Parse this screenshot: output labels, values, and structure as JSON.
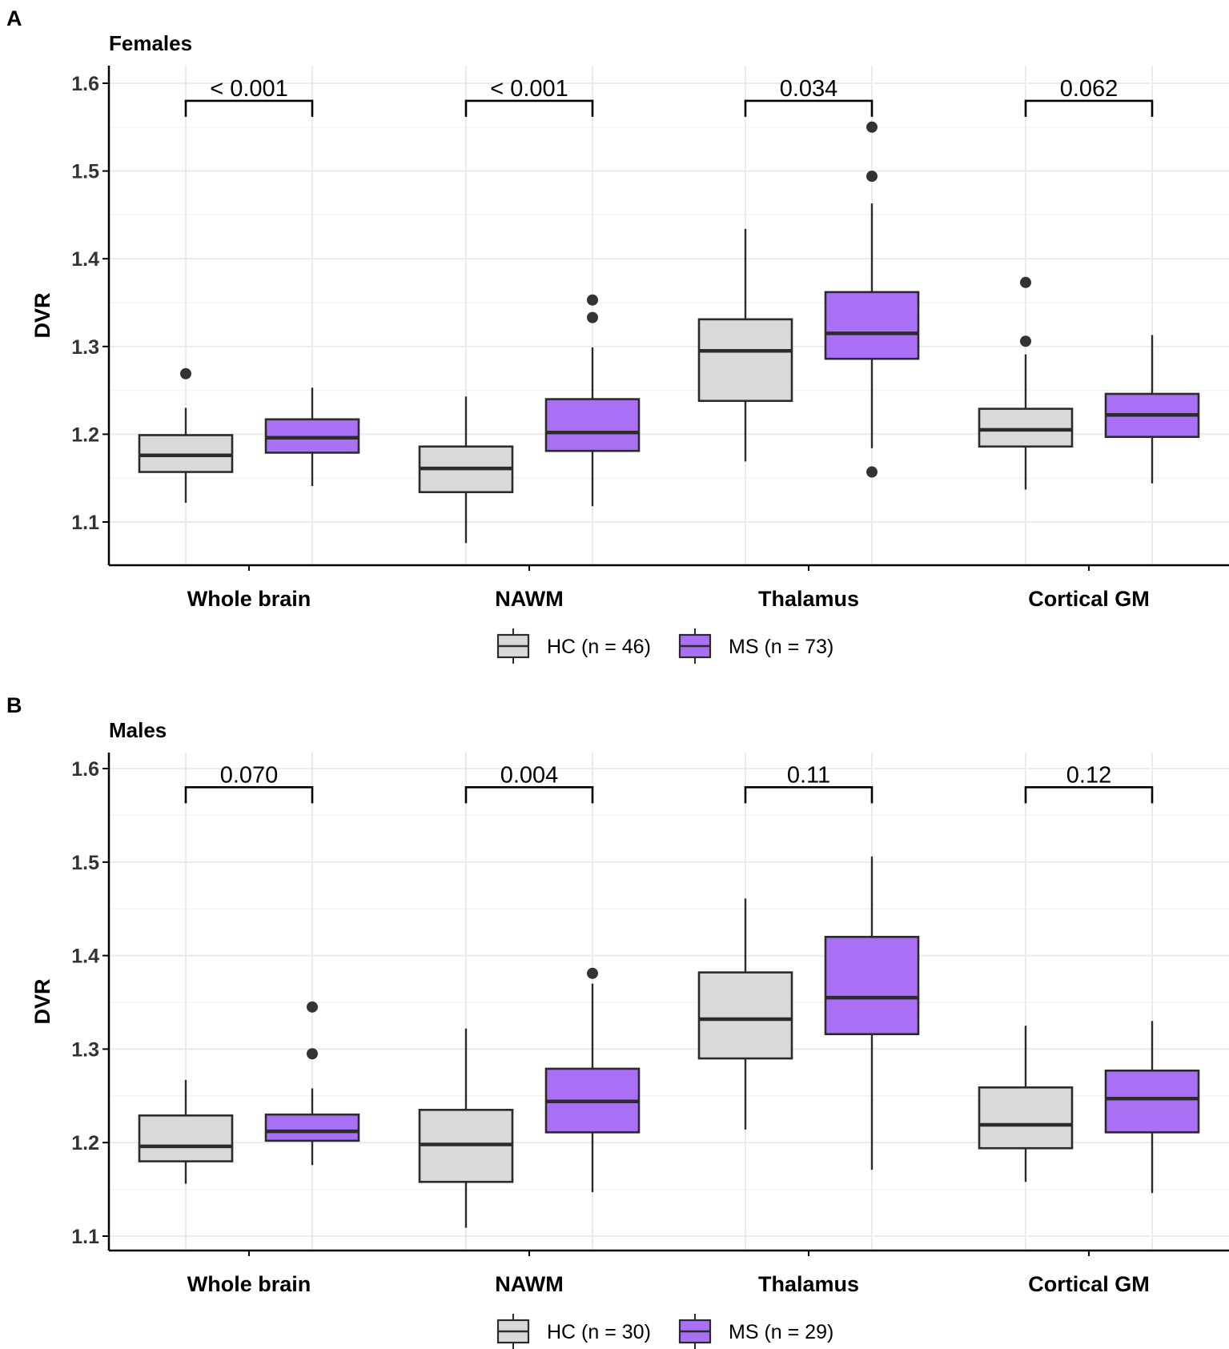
{
  "figure": {
    "description_free": true
  },
  "chart_data": [
    {
      "type": "boxplot",
      "panel_label": "A",
      "title": "Females",
      "xlabel": "",
      "ylabel": "DVR",
      "ylim": [
        1.05,
        1.62
      ],
      "yticks": [
        "1.1",
        "1.2",
        "1.3",
        "1.4",
        "1.5",
        "1.6"
      ],
      "categories": [
        "Whole brain",
        "NAWM",
        "Thalamus",
        "Cortical GM"
      ],
      "legend": {
        "placement": "bottom",
        "entries": [
          "HC (n = 46)",
          "MS (n = 73)"
        ]
      },
      "colors": {
        "HC": "#d9d9d9",
        "MS": "#a970f5",
        "stroke": "#2b2b2b"
      },
      "p_values": [
        "< 0.001",
        "< 0.001",
        "0.034",
        "0.062"
      ],
      "series": [
        {
          "name": "HC",
          "boxes": [
            {
              "category": "Whole brain",
              "min": 1.122,
              "q1": 1.157,
              "median": 1.176,
              "q3": 1.199,
              "max": 1.23,
              "outliers": [
                1.269
              ]
            },
            {
              "category": "NAWM",
              "min": 1.076,
              "q1": 1.134,
              "median": 1.161,
              "q3": 1.186,
              "max": 1.243,
              "outliers": []
            },
            {
              "category": "Thalamus",
              "min": 1.169,
              "q1": 1.238,
              "median": 1.295,
              "q3": 1.331,
              "max": 1.434,
              "outliers": []
            },
            {
              "category": "Cortical GM",
              "min": 1.137,
              "q1": 1.186,
              "median": 1.205,
              "q3": 1.229,
              "max": 1.291,
              "outliers": [
                1.306,
                1.373
              ]
            }
          ]
        },
        {
          "name": "MS",
          "boxes": [
            {
              "category": "Whole brain",
              "min": 1.141,
              "q1": 1.179,
              "median": 1.196,
              "q3": 1.217,
              "max": 1.253,
              "outliers": []
            },
            {
              "category": "NAWM",
              "min": 1.118,
              "q1": 1.181,
              "median": 1.202,
              "q3": 1.24,
              "max": 1.299,
              "outliers": [
                1.333,
                1.353
              ]
            },
            {
              "category": "Thalamus",
              "min": 1.184,
              "q1": 1.286,
              "median": 1.315,
              "q3": 1.362,
              "max": 1.463,
              "outliers": [
                1.157,
                1.494,
                1.55
              ]
            },
            {
              "category": "Cortical GM",
              "min": 1.144,
              "q1": 1.197,
              "median": 1.222,
              "q3": 1.246,
              "max": 1.313,
              "outliers": []
            }
          ]
        }
      ]
    },
    {
      "type": "boxplot",
      "panel_label": "B",
      "title": "Males",
      "xlabel": "",
      "ylabel": "DVR",
      "ylim": [
        1.085,
        1.62
      ],
      "yticks": [
        "1.1",
        "1.2",
        "1.3",
        "1.4",
        "1.5",
        "1.6"
      ],
      "categories": [
        "Whole brain",
        "NAWM",
        "Thalamus",
        "Cortical GM"
      ],
      "legend": {
        "placement": "bottom",
        "entries": [
          "HC (n = 30)",
          "MS (n = 29)"
        ]
      },
      "colors": {
        "HC": "#d9d9d9",
        "MS": "#a970f5",
        "stroke": "#2b2b2b"
      },
      "p_values": [
        "0.070",
        "0.004",
        "0.11",
        "0.12"
      ],
      "series": [
        {
          "name": "HC",
          "boxes": [
            {
              "category": "Whole brain",
              "min": 1.156,
              "q1": 1.18,
              "median": 1.196,
              "q3": 1.229,
              "max": 1.267,
              "outliers": []
            },
            {
              "category": "NAWM",
              "min": 1.109,
              "q1": 1.158,
              "median": 1.198,
              "q3": 1.235,
              "max": 1.322,
              "outliers": []
            },
            {
              "category": "Thalamus",
              "min": 1.214,
              "q1": 1.29,
              "median": 1.332,
              "q3": 1.382,
              "max": 1.461,
              "outliers": []
            },
            {
              "category": "Cortical GM",
              "min": 1.158,
              "q1": 1.194,
              "median": 1.219,
              "q3": 1.259,
              "max": 1.325,
              "outliers": []
            }
          ]
        },
        {
          "name": "MS",
          "boxes": [
            {
              "category": "Whole brain",
              "min": 1.176,
              "q1": 1.202,
              "median": 1.212,
              "q3": 1.23,
              "max": 1.258,
              "outliers": [
                1.295,
                1.345
              ]
            },
            {
              "category": "NAWM",
              "min": 1.147,
              "q1": 1.211,
              "median": 1.244,
              "q3": 1.279,
              "max": 1.37,
              "outliers": [
                1.381
              ]
            },
            {
              "category": "Thalamus",
              "min": 1.171,
              "q1": 1.316,
              "median": 1.355,
              "q3": 1.42,
              "max": 1.506,
              "outliers": []
            },
            {
              "category": "Cortical GM",
              "min": 1.146,
              "q1": 1.211,
              "median": 1.247,
              "q3": 1.277,
              "max": 1.33,
              "outliers": []
            }
          ]
        }
      ]
    }
  ]
}
